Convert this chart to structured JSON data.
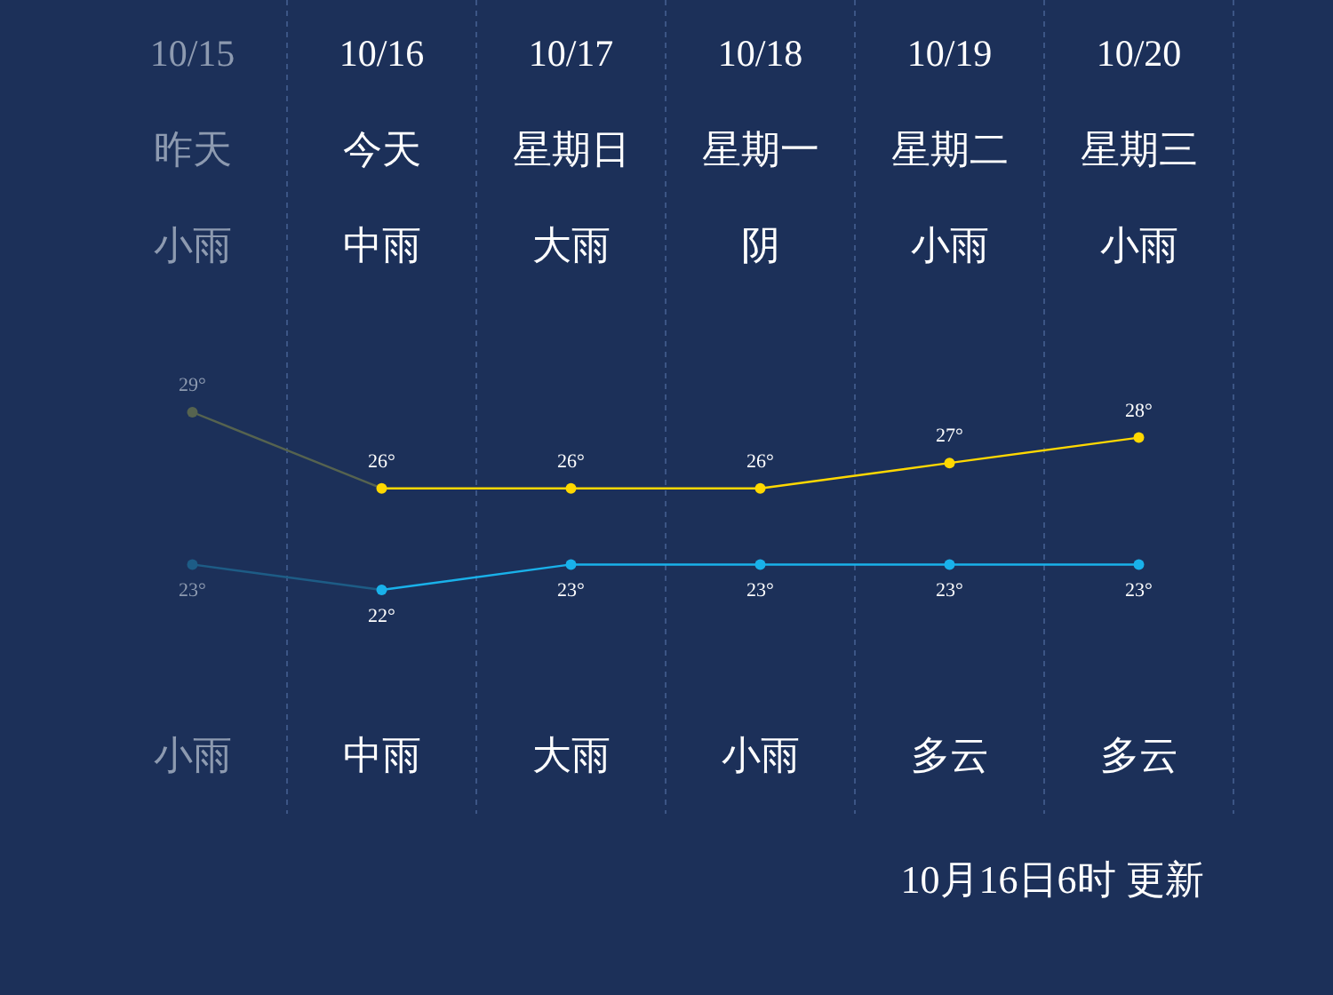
{
  "chart_data": {
    "type": "line",
    "categories": [
      "10/15",
      "10/16",
      "10/17",
      "10/18",
      "10/19",
      "10/20"
    ],
    "series": [
      {
        "color": "#ffd800",
        "colors": [
          "#56634f",
          "#ffd800",
          "#ffd800",
          "#ffd800",
          "#ffd800",
          "#ffd800"
        ],
        "values": [
          29,
          26,
          26,
          26,
          27,
          28
        ],
        "value_labels": [
          "29°",
          "26°",
          "26°",
          "26°",
          "27°",
          "28°"
        ]
      },
      {
        "color": "#19b1ea",
        "colors": [
          "#1d5c86",
          "#19b1ea",
          "#19b1ea",
          "#19b1ea",
          "#19b1ea",
          "#19b1ea"
        ],
        "values": [
          23,
          22,
          23,
          23,
          23,
          23
        ],
        "value_labels": [
          "23°",
          "22°",
          "23°",
          "23°",
          "23°",
          "23°"
        ]
      }
    ],
    "grid": "x",
    "marker": "circle",
    "line_style": "solid",
    "annotations": [
      "昨天",
      "今天",
      "星期日",
      "星期一",
      "星期二",
      "星期三",
      "小雨",
      "中雨",
      "大雨",
      "阴",
      "小雨",
      "小雨",
      "小雨",
      "中雨",
      "大雨",
      "小雨",
      "多云",
      "多云",
      "10月16日6时 更新"
    ]
  }
}
